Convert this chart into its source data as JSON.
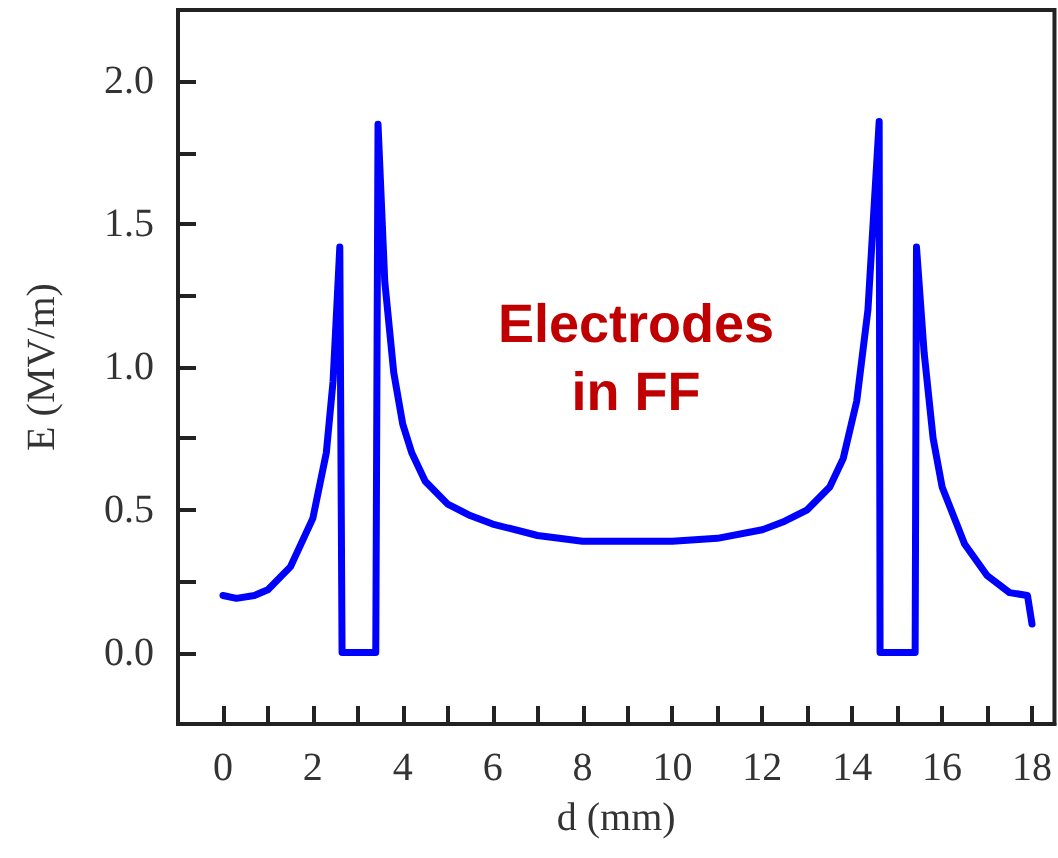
{
  "chart_data": {
    "type": "line",
    "xlabel": "d (mm)",
    "ylabel": "E (MV/m)",
    "annotations": [
      "Electrodes\nin FF"
    ],
    "xlim": [
      -1,
      18.5
    ],
    "ylim": [
      -0.25,
      2.25
    ],
    "xticks": [
      0,
      {
        "value": 1,
        "label": null
      },
      2,
      {
        "value": 3,
        "label": null
      },
      4,
      {
        "value": 5,
        "label": null
      },
      6,
      {
        "value": 7,
        "label": null
      },
      8,
      {
        "value": 9,
        "label": null
      },
      10,
      {
        "value": 11,
        "label": null
      },
      12,
      {
        "value": 13,
        "label": null
      },
      14,
      {
        "value": 15,
        "label": null
      },
      16,
      {
        "value": 17,
        "label": null
      },
      18
    ],
    "yticks": [
      {
        "value": 0,
        "label": "0.0"
      },
      {
        "value": 0.25,
        "label": null
      },
      {
        "value": 0.5,
        "label": "0.5"
      },
      {
        "value": 0.75,
        "label": null
      },
      {
        "value": 1,
        "label": "1.0"
      },
      {
        "value": 1.25,
        "label": null
      },
      {
        "value": 1.5,
        "label": "1.5"
      },
      {
        "value": 1.75,
        "label": null
      },
      {
        "value": 2,
        "label": "2.0"
      }
    ],
    "grid": false,
    "marker": "none",
    "line_style": "solid",
    "series": [
      {
        "color": "#0000ff",
        "x": [
          0,
          0.3,
          0.7,
          1,
          1.5,
          2,
          2.3,
          2.45,
          2.6,
          2.65,
          3.4,
          3.45,
          3.6,
          3.8,
          4,
          4.2,
          4.5,
          5,
          5.5,
          6,
          7,
          8,
          9,
          10,
          11,
          12,
          12.5,
          13,
          13.5,
          13.8,
          14.1,
          14.35,
          14.6,
          14.62,
          15.4,
          15.43,
          15.6,
          15.8,
          16,
          16.5,
          17,
          17.5,
          17.9,
          18
        ],
        "values": [
          0.2,
          0.19,
          0.2,
          0.22,
          0.3,
          0.47,
          0.7,
          0.95,
          1.42,
          0,
          0,
          1.85,
          1.3,
          0.98,
          0.8,
          0.7,
          0.6,
          0.52,
          0.48,
          0.45,
          0.41,
          0.39,
          0.39,
          0.39,
          0.4,
          0.43,
          0.46,
          0.5,
          0.58,
          0.68,
          0.88,
          1.2,
          1.86,
          0,
          0,
          1.42,
          1.05,
          0.75,
          0.58,
          0.38,
          0.27,
          0.21,
          0.2,
          0.1
        ]
      }
    ]
  }
}
